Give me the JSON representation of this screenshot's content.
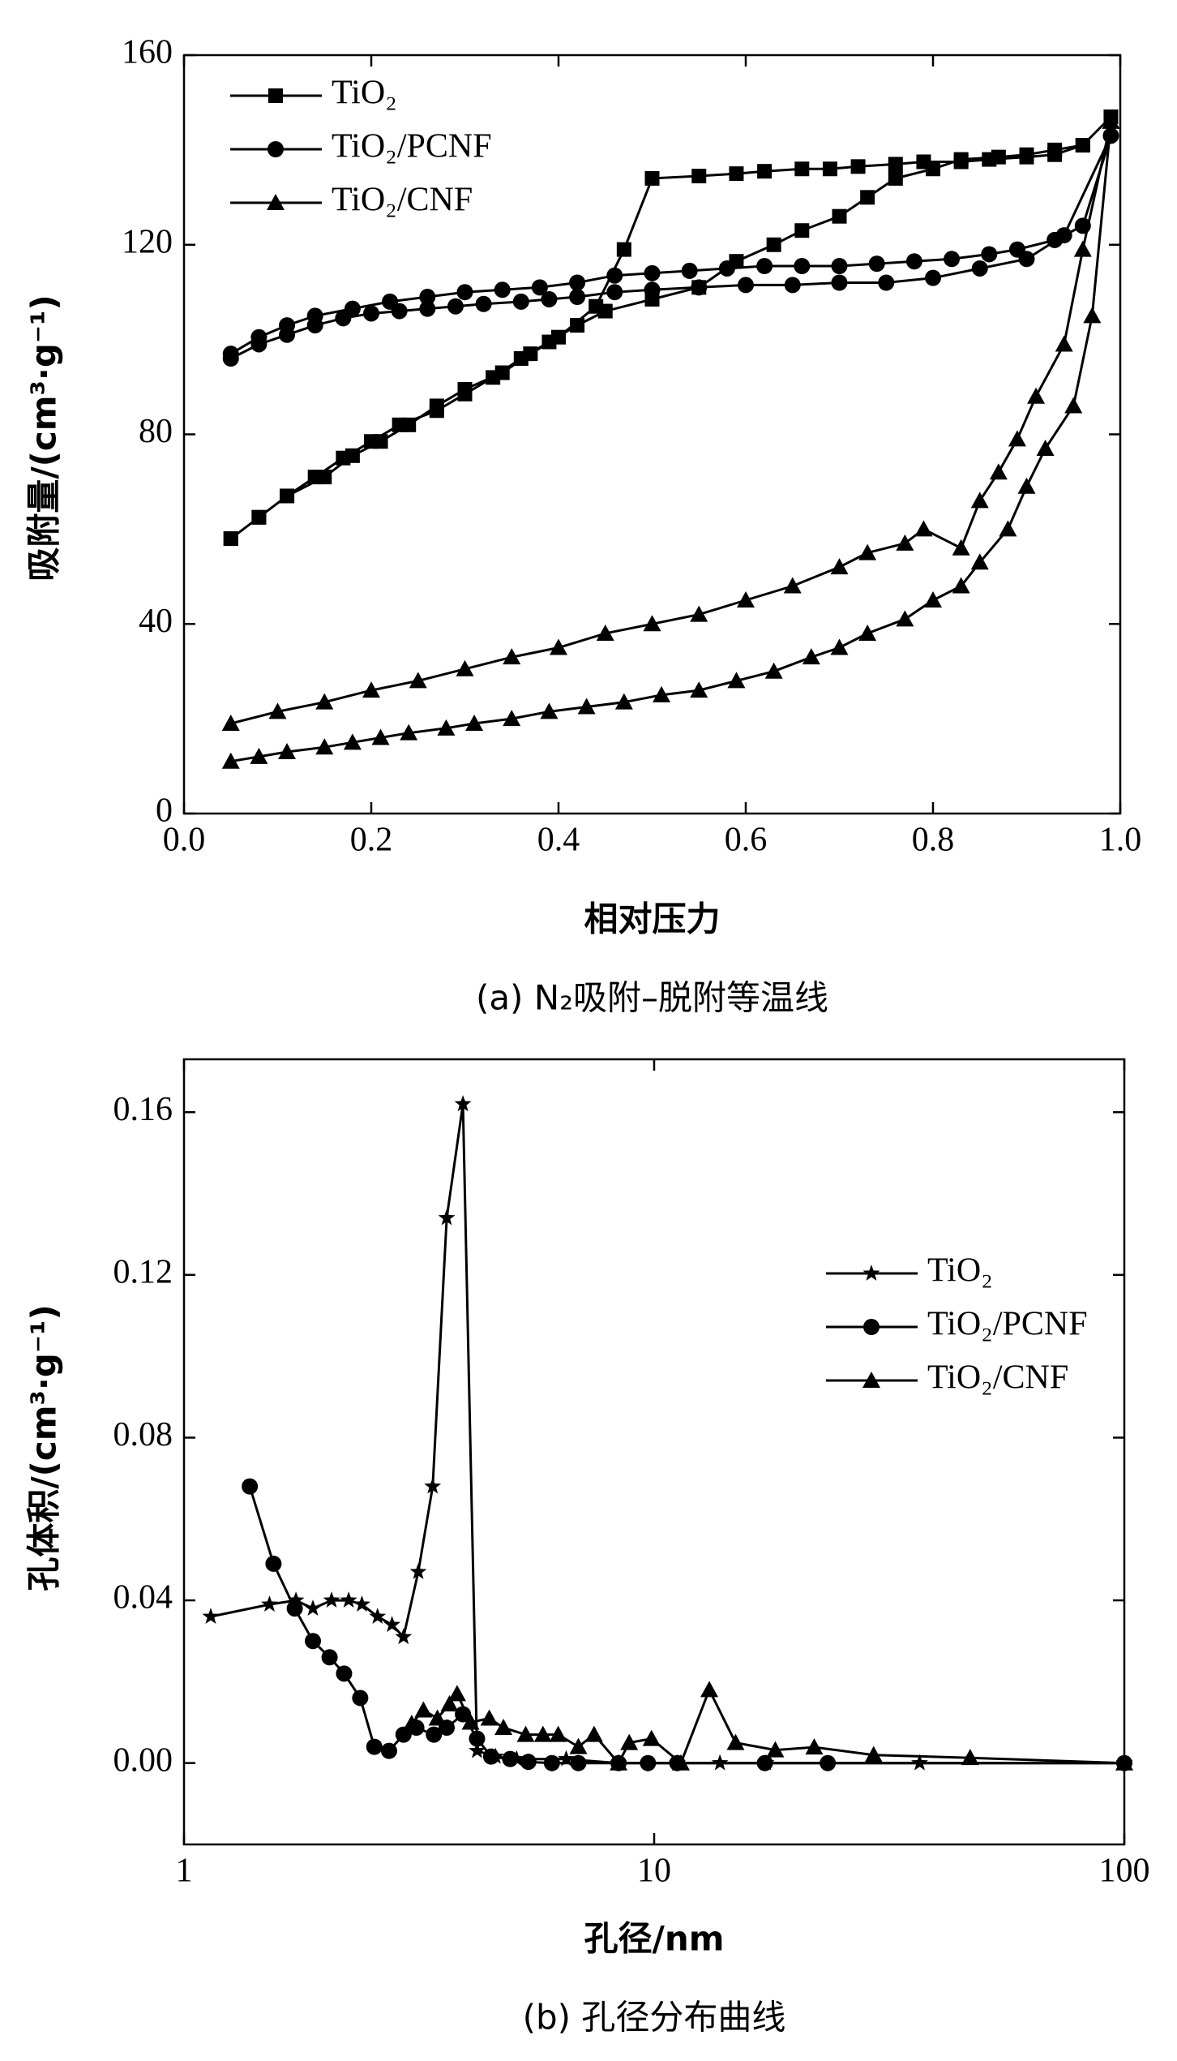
{
  "chart_data": [
    {
      "type": "line",
      "caption": "(a) N₂吸附–脱附等温线",
      "xlabel": "相对压力",
      "ylabel": "吸附量/(cm³·g⁻¹)",
      "xlim": [
        0,
        1
      ],
      "ylim": [
        0,
        160
      ],
      "xticks": [
        {
          "value": 0,
          "label": "0.0"
        },
        0.2,
        0.4,
        0.6,
        0.8,
        {
          "value": 1,
          "label": "1.0"
        }
      ],
      "yticks": [
        0,
        40,
        80,
        120,
        160
      ],
      "log_x": false,
      "grid": false,
      "legend": "upper left",
      "series": [
        {
          "name": "TiO₂",
          "color": "#000000",
          "marker": "square",
          "x": [
            0.05,
            0.08,
            0.11,
            0.14,
            0.17,
            0.2,
            0.23,
            0.27,
            0.3,
            0.33,
            0.36,
            0.39,
            0.42,
            0.45,
            0.5,
            0.55,
            0.59,
            0.63,
            0.66,
            0.7,
            0.73,
            0.76,
            0.8,
            0.83,
            0.87,
            0.9,
            0.93,
            0.96,
            0.99,
            0.96,
            0.93,
            0.9,
            0.86,
            0.83,
            0.79,
            0.76,
            0.72,
            0.69,
            0.66,
            0.62,
            0.59,
            0.55,
            0.5,
            0.47,
            0.44,
            0.4,
            0.37,
            0.34,
            0.3,
            0.27,
            0.24,
            0.21,
            0.18,
            0.15,
            0.11,
            0.08,
            0.05
          ],
          "values": [
            58,
            62.5,
            67,
            71,
            75,
            78.5,
            82,
            85,
            88.5,
            92,
            96,
            99.5,
            103,
            106,
            108.5,
            111,
            116.5,
            120,
            123,
            126,
            130,
            134,
            136,
            138,
            138.5,
            139,
            140,
            141,
            147,
            141,
            139,
            138.5,
            138,
            137.5,
            137.5,
            137,
            136.5,
            136,
            136,
            135.5,
            135,
            134.5,
            134,
            119,
            107,
            100.5,
            97,
            93,
            89.5,
            86,
            82,
            78.5,
            75.5,
            71,
            67,
            62.5,
            58
          ]
        },
        {
          "name": "TiO₂/PCNF",
          "color": "#000000",
          "marker": "circle",
          "x": [
            0.05,
            0.08,
            0.11,
            0.14,
            0.17,
            0.2,
            0.23,
            0.26,
            0.29,
            0.32,
            0.36,
            0.39,
            0.42,
            0.46,
            0.5,
            0.55,
            0.6,
            0.65,
            0.7,
            0.75,
            0.8,
            0.85,
            0.9,
            0.94,
            0.99,
            0.96,
            0.93,
            0.89,
            0.86,
            0.82,
            0.78,
            0.74,
            0.7,
            0.66,
            0.62,
            0.58,
            0.54,
            0.5,
            0.46,
            0.42,
            0.38,
            0.34,
            0.3,
            0.26,
            0.22,
            0.18,
            0.14,
            0.11,
            0.08,
            0.05
          ],
          "values": [
            96,
            99,
            101,
            103,
            104.5,
            105.5,
            106,
            106.5,
            107,
            107.5,
            108,
            108.5,
            109,
            110,
            110.5,
            111,
            111.5,
            111.5,
            112,
            112,
            113,
            115,
            117,
            122,
            143,
            124,
            121,
            119,
            118,
            117,
            116.5,
            116,
            115.5,
            115.5,
            115.5,
            115,
            114.5,
            114,
            113.5,
            112,
            111,
            110.5,
            110,
            109,
            108,
            106.5,
            105,
            103,
            100.5,
            97
          ]
        },
        {
          "name": "TiO₂/CNF",
          "color": "#000000",
          "marker": "triangle",
          "x": [
            0.05,
            0.08,
            0.11,
            0.15,
            0.18,
            0.21,
            0.24,
            0.28,
            0.31,
            0.35,
            0.39,
            0.43,
            0.47,
            0.51,
            0.55,
            0.59,
            0.63,
            0.67,
            0.7,
            0.73,
            0.77,
            0.8,
            0.83,
            0.85,
            0.88,
            0.9,
            0.92,
            0.95,
            0.97,
            0.99,
            0.96,
            0.94,
            0.91,
            0.89,
            0.87,
            0.85,
            0.83,
            0.79,
            0.77,
            0.73,
            0.7,
            0.65,
            0.6,
            0.55,
            0.5,
            0.45,
            0.4,
            0.35,
            0.3,
            0.25,
            0.2,
            0.15,
            0.1,
            0.05
          ],
          "values": [
            11,
            12,
            13,
            14,
            15,
            16,
            17,
            18,
            19,
            20,
            21.5,
            22.5,
            23.5,
            25,
            26,
            28,
            30,
            33,
            35,
            38,
            41,
            45,
            48,
            53,
            60,
            69,
            77,
            86,
            105,
            146,
            119,
            99,
            88,
            79,
            72,
            66,
            56,
            60,
            57,
            55,
            52,
            48,
            45,
            42,
            40,
            38,
            35,
            33,
            30.5,
            28,
            26,
            23.5,
            21.5,
            19
          ]
        }
      ]
    },
    {
      "type": "line",
      "caption": "(b) 孔径分布曲线",
      "xlabel": "孔径/nm",
      "ylabel": "孔体积/(cm³·g⁻¹)",
      "xlim": [
        1,
        100
      ],
      "ylim": [
        -0.02,
        0.173
      ],
      "xticks": [
        1,
        10,
        100
      ],
      "yticks": [
        {
          "value": 0,
          "label": "0.00"
        },
        0.04,
        0.08,
        0.12,
        0.16
      ],
      "log_x": true,
      "grid": false,
      "legend": "center right",
      "series": [
        {
          "name": "TiO₂",
          "color": "#000000",
          "marker": "star",
          "x": [
            1.14,
            1.52,
            1.73,
            1.88,
            2.06,
            2.24,
            2.39,
            2.58,
            2.77,
            2.93,
            3.15,
            3.38,
            3.62,
            3.92,
            4.2,
            4.6,
            5.1,
            6.5,
            8.4,
            11.2,
            13.8,
            17.3,
            36.7,
            100
          ],
          "values": [
            0.036,
            0.039,
            0.04,
            0.038,
            0.04,
            0.04,
            0.039,
            0.036,
            0.034,
            0.031,
            0.047,
            0.068,
            0.134,
            0.162,
            0.003,
            0.0016,
            0.001,
            0.001,
            0,
            0,
            0,
            0,
            0,
            0
          ]
        },
        {
          "name": "TiO₂/PCNF",
          "color": "#000000",
          "marker": "circle",
          "x": [
            1.38,
            1.55,
            1.72,
            1.88,
            2.04,
            2.19,
            2.37,
            2.54,
            2.73,
            2.93,
            3.12,
            3.4,
            3.62,
            3.92,
            4.2,
            4.5,
            4.94,
            5.4,
            6.06,
            6.9,
            8.4,
            9.7,
            11.2,
            17.2,
            23.4,
            100
          ],
          "values": [
            0.068,
            0.049,
            0.038,
            0.03,
            0.026,
            0.022,
            0.016,
            0.004,
            0.003,
            0.007,
            0.0087,
            0.007,
            0.0087,
            0.012,
            0.006,
            0.0016,
            0.001,
            0.0003,
            0,
            0,
            0,
            0,
            0,
            0,
            0,
            0
          ]
        },
        {
          "name": "TiO₂/CNF",
          "color": "#000000",
          "marker": "triangle",
          "x": [
            3.05,
            3.23,
            3.46,
            3.67,
            3.81,
            4.07,
            4.46,
            4.78,
            5.33,
            5.8,
            6.25,
            6.9,
            7.45,
            8.4,
            8.85,
            9.87,
            11.4,
            13.1,
            14.9,
            18.1,
            21.9,
            29.3,
            47,
            100
          ],
          "values": [
            0.0097,
            0.013,
            0.011,
            0.0145,
            0.017,
            0.01,
            0.011,
            0.0087,
            0.007,
            0.007,
            0.007,
            0.004,
            0.007,
            0,
            0.005,
            0.006,
            0,
            0.018,
            0.005,
            0.0032,
            0.0039,
            0.002,
            0.0013,
            0
          ]
        }
      ]
    }
  ]
}
